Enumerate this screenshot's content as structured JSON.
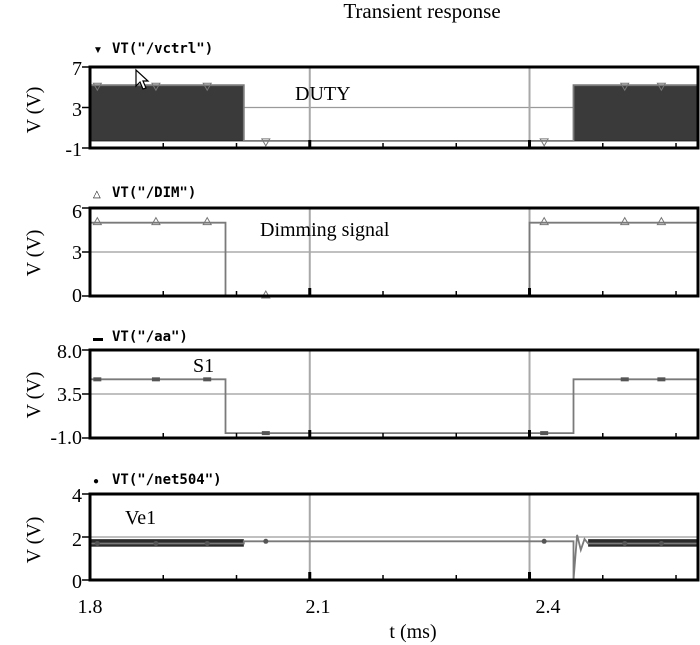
{
  "chart_data": {
    "title": "Transient response",
    "xlabel": "t (ms)",
    "xlim": [
      1.8,
      2.63
    ],
    "xticks": [
      "1.8",
      "2.1",
      "2.4"
    ],
    "panels": [
      {
        "id": "ctrl",
        "type": "line",
        "signal": "VT(\"/vctrl\")",
        "marker": "triangle-down",
        "annotation": "DUTY",
        "ylabel": "V (V)",
        "ylim": [
          -1,
          7
        ],
        "yticks": [
          "7",
          "3",
          "-1"
        ],
        "series": [
          {
            "x": [
              1.8,
              2.01,
              2.01,
              2.46,
              2.46,
              2.63
            ],
            "y": [
              5.2,
              5.2,
              -0.3,
              -0.3,
              5.2,
              5.2
            ]
          }
        ],
        "filled_regions": [
          [
            1.8,
            2.01
          ],
          [
            2.46,
            2.63
          ]
        ]
      },
      {
        "id": "dim",
        "type": "line",
        "signal": "VT(\"/DIM\")",
        "marker": "triangle-up",
        "annotation": "Dimming signal",
        "ylabel": "V (V)",
        "ylim": [
          0,
          6
        ],
        "yticks": [
          "6",
          "3",
          "0"
        ],
        "series": [
          {
            "x": [
              1.8,
              1.985,
              1.985,
              2.4,
              2.4,
              2.63
            ],
            "y": [
              5,
              5,
              0,
              0,
              5,
              5
            ]
          }
        ]
      },
      {
        "id": "aa",
        "type": "line",
        "signal": "VT(\"/aa\")",
        "marker": "square",
        "annotation": "S1",
        "ylabel": "V (V)",
        "ylim": [
          -1,
          8
        ],
        "yticks": [
          "8.0",
          "3.5",
          "-1.0"
        ],
        "series": [
          {
            "x": [
              1.8,
              1.985,
              1.985,
              2.46,
              2.46,
              2.63
            ],
            "y": [
              5,
              5,
              -0.5,
              -0.5,
              5,
              5
            ]
          }
        ]
      },
      {
        "id": "net504",
        "type": "line",
        "signal": "VT(\"/net504\")",
        "marker": "dot",
        "annotation": "Ve1",
        "ylabel": "V (V)",
        "ylim": [
          0,
          4
        ],
        "yticks": [
          "4",
          "2",
          "0"
        ],
        "series": [
          {
            "x": [
              1.8,
              2.01,
              2.01,
              2.46,
              2.46,
              2.465,
              2.47,
              2.475,
              2.48,
              2.63
            ],
            "y": [
              1.7,
              1.7,
              1.8,
              1.8,
              0,
              2.1,
              1.4,
              1.9,
              1.7,
              1.7
            ]
          }
        ],
        "filled_regions": [
          [
            1.8,
            2.01
          ],
          [
            2.48,
            2.63
          ]
        ]
      }
    ]
  }
}
